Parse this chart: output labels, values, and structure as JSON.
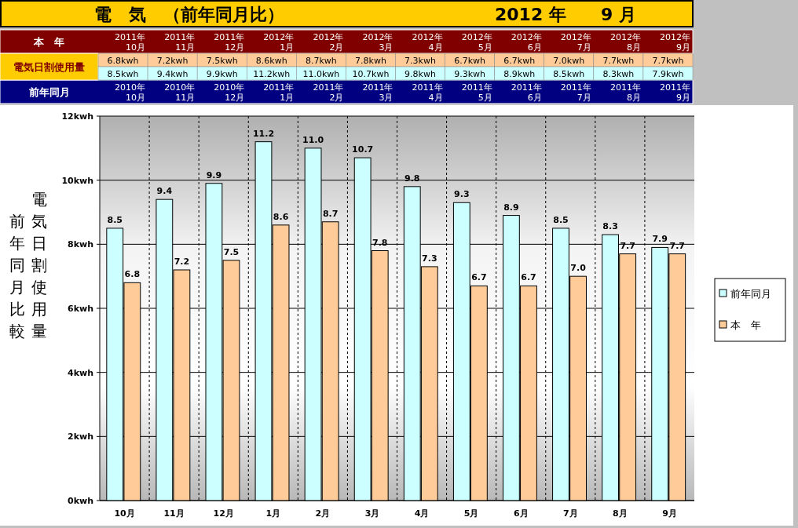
{
  "chart_data": {
    "type": "bar",
    "title": "電　気　（前年同月比）",
    "subtitle": "2012 年　　9 月",
    "ylabel": "電気日割使用量",
    "annotations": [
      "本　年",
      "電気日割使用量",
      "前年同月",
      "2011年\n10月",
      "2011年\n11月",
      "2011年\n12月",
      "2012年\n1月",
      "2012年\n2月",
      "2012年\n3月",
      "2012年\n4月",
      "2012年\n5月",
      "2012年\n6月",
      "2012年\n7月",
      "2012年\n8月",
      "2012年\n9月",
      "6.8kwh",
      "7.2kwh",
      "7.5kwh",
      "8.6kwh",
      "8.7kwh",
      "7.8kwh",
      "7.3kwh",
      "6.7kwh",
      "6.7kwh",
      "7.0kwh",
      "7.7kwh",
      "7.7kwh",
      "8.5kwh",
      "9.4kwh",
      "9.9kwh",
      "11.2kwh",
      "11.0kwh",
      "10.7kwh",
      "9.8kwh",
      "9.3kwh",
      "8.9kwh",
      "8.5kwh",
      "8.3kwh",
      "7.9kwh",
      "2010年\n10月",
      "2010年\n11月",
      "2010年\n12月",
      "2011年\n1月",
      "2011年\n2月",
      "2011年\n3月",
      "2011年\n4月",
      "2011年\n5月",
      "2011年\n6月",
      "2011年\n7月",
      "2011年\n8月",
      "2011年\n9月",
      "前年同月比較"
    ],
    "categories": [
      "10月",
      "11月",
      "12月",
      "1月",
      "2月",
      "3月",
      "4月",
      "5月",
      "6月",
      "7月",
      "8月",
      "9月"
    ],
    "series": [
      {
        "name": "前年同月",
        "color": "#ccffff",
        "values": [
          8.5,
          9.4,
          9.9,
          11.2,
          11.0,
          10.7,
          9.8,
          9.3,
          8.9,
          8.5,
          8.3,
          7.9
        ],
        "value_labels": [
          "8.5",
          "9.4",
          "9.9",
          "11.2",
          "11.0",
          "10.7",
          "9.8",
          "9.3",
          "8.9",
          "8.5",
          "8.3",
          "7.9"
        ]
      },
      {
        "name": "本　年",
        "color": "#ffcc99",
        "values": [
          6.8,
          7.2,
          7.5,
          8.6,
          8.7,
          7.8,
          7.3,
          6.7,
          6.7,
          7.0,
          7.7,
          7.7
        ],
        "value_labels": [
          "6.8",
          "7.2",
          "7.5",
          "8.6",
          "8.7",
          "7.8",
          "7.3",
          "6.7",
          "6.7",
          "7.0",
          "7.7",
          "7.7"
        ]
      }
    ],
    "ylim": [
      0,
      12
    ],
    "yticks": [
      {
        "value": 0,
        "label": "0kwh"
      },
      {
        "value": 2,
        "label": "2kwh"
      },
      {
        "value": 4,
        "label": "4kwh"
      },
      {
        "value": 6,
        "label": "6kwh"
      },
      {
        "value": 8,
        "label": "8kwh"
      },
      {
        "value": 10,
        "label": "10kwh"
      },
      {
        "value": 12,
        "label": "12kwh"
      }
    ],
    "grid": true,
    "legend": "right"
  }
}
